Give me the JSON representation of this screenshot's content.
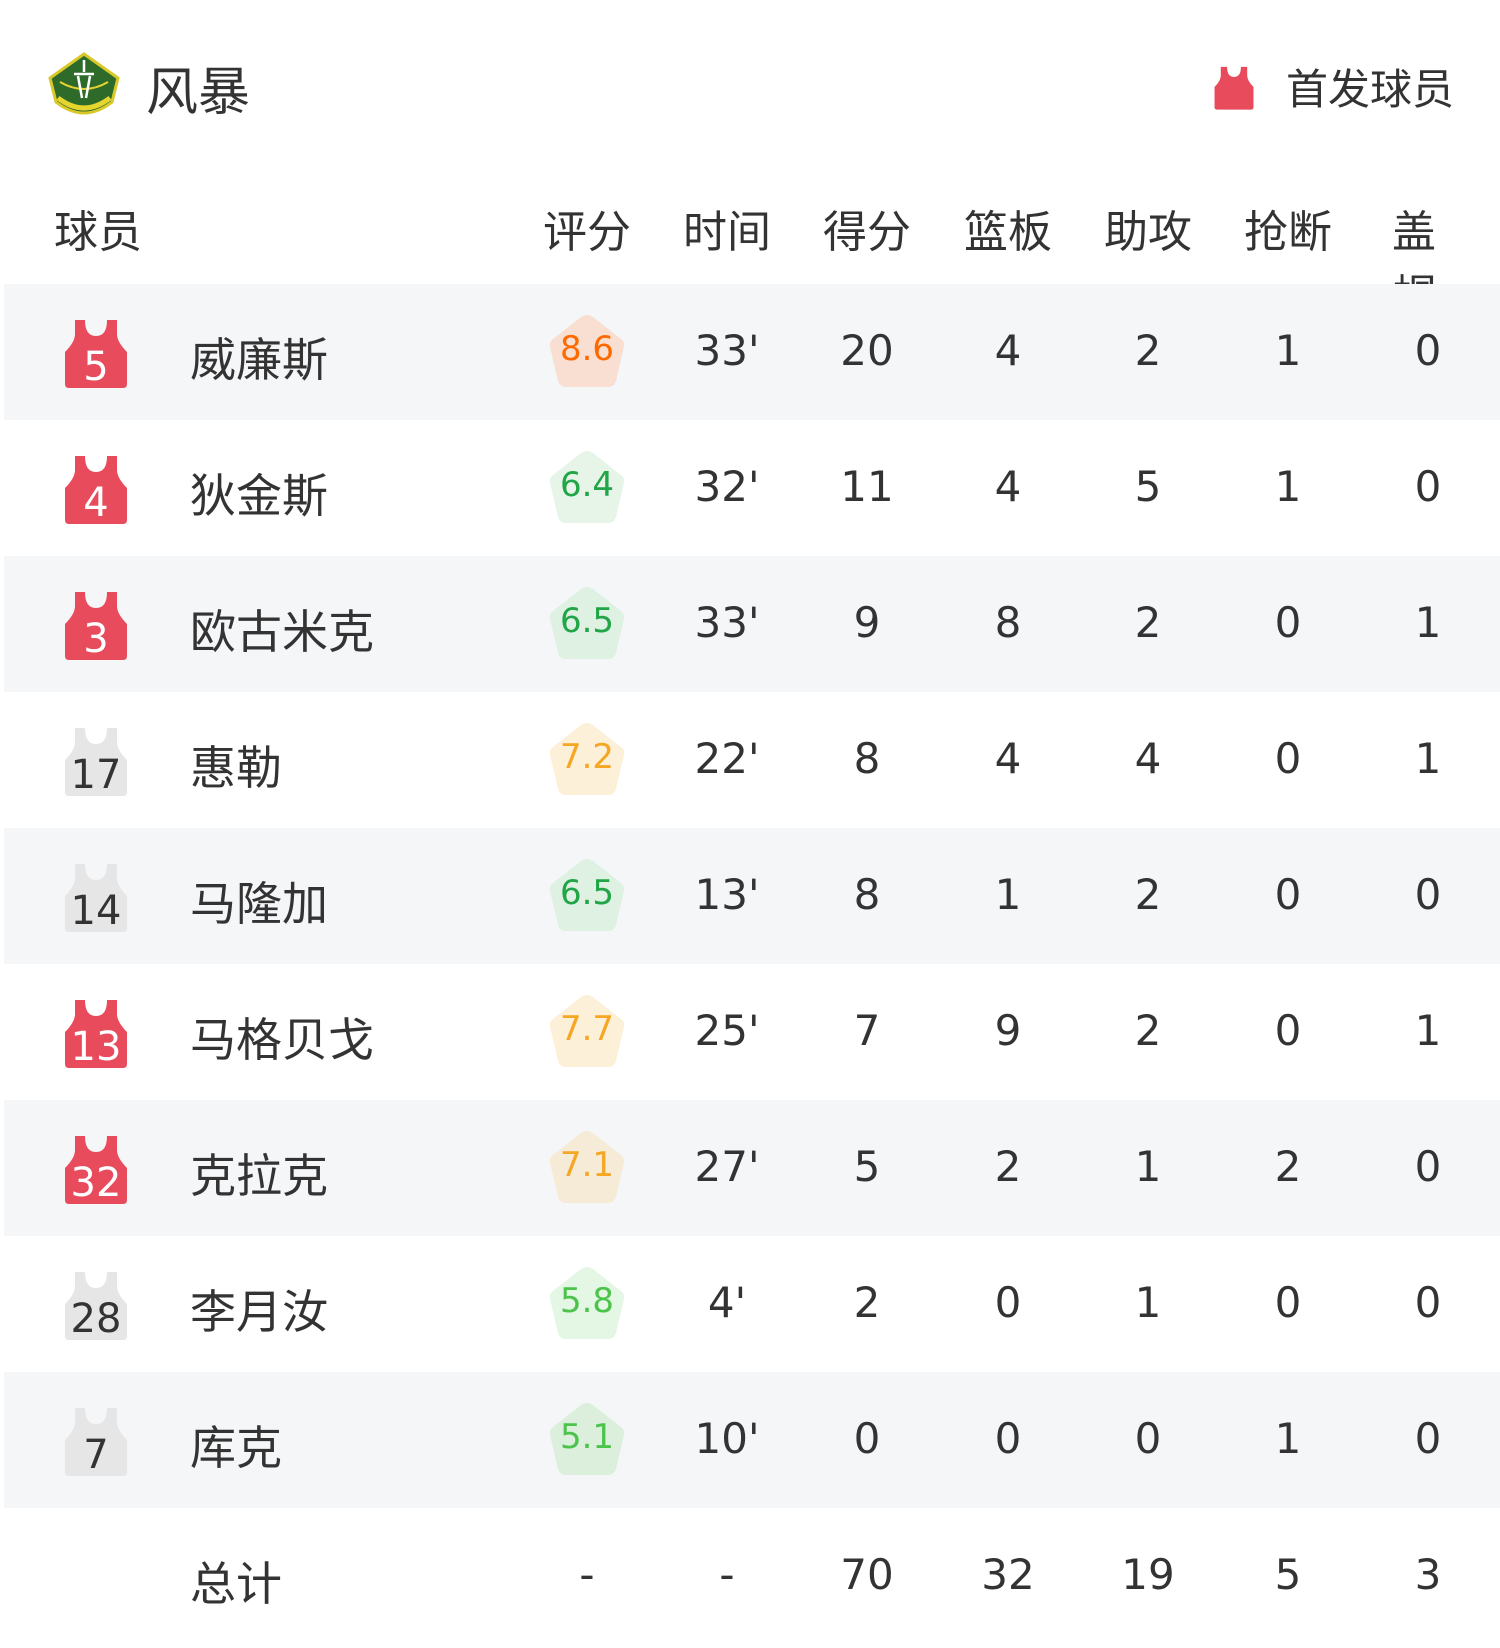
{
  "header": {
    "team_name": "风暴",
    "logo": "seattle-storm-logo",
    "legend_label": "首发球员",
    "legend_icon": "jersey-icon",
    "starter_color": "#e84c5c",
    "bench_color": "#e6e6e6"
  },
  "columns": [
    "球员",
    "评分",
    "时间",
    "得分",
    "篮板",
    "助攻",
    "抢断",
    "盖帽"
  ],
  "players": [
    {
      "number": "5",
      "name": "威廉斯",
      "starter": true,
      "rating": "8.6",
      "rating_color": "#ff6a00",
      "rating_bg": "#f8dfd2",
      "min": "33'",
      "pts": "20",
      "reb": "4",
      "ast": "2",
      "stl": "1",
      "blk": "0"
    },
    {
      "number": "4",
      "name": "狄金斯",
      "starter": true,
      "rating": "6.4",
      "rating_color": "#21a546",
      "rating_bg": "#e6f5e8",
      "min": "32'",
      "pts": "11",
      "reb": "4",
      "ast": "5",
      "stl": "1",
      "blk": "0"
    },
    {
      "number": "3",
      "name": "欧古米克",
      "starter": true,
      "rating": "6.5",
      "rating_color": "#21a546",
      "rating_bg": "#dff1e3",
      "min": "33'",
      "pts": "9",
      "reb": "8",
      "ast": "2",
      "stl": "0",
      "blk": "1"
    },
    {
      "number": "17",
      "name": "惠勒",
      "starter": false,
      "rating": "7.2",
      "rating_color": "#f5a623",
      "rating_bg": "#fdf0d8",
      "min": "22'",
      "pts": "8",
      "reb": "4",
      "ast": "4",
      "stl": "0",
      "blk": "1"
    },
    {
      "number": "14",
      "name": "马隆加",
      "starter": false,
      "rating": "6.5",
      "rating_color": "#21a546",
      "rating_bg": "#dff1e3",
      "min": "13'",
      "pts": "8",
      "reb": "1",
      "ast": "2",
      "stl": "0",
      "blk": "0"
    },
    {
      "number": "13",
      "name": "马格贝戈",
      "starter": true,
      "rating": "7.7",
      "rating_color": "#f5a623",
      "rating_bg": "#fdf0d8",
      "min": "25'",
      "pts": "7",
      "reb": "9",
      "ast": "2",
      "stl": "0",
      "blk": "1"
    },
    {
      "number": "32",
      "name": "克拉克",
      "starter": true,
      "rating": "7.1",
      "rating_color": "#f5a623",
      "rating_bg": "#f6ebd6",
      "min": "27'",
      "pts": "5",
      "reb": "2",
      "ast": "1",
      "stl": "2",
      "blk": "0"
    },
    {
      "number": "28",
      "name": "李月汝",
      "starter": false,
      "rating": "5.8",
      "rating_color": "#4cc44c",
      "rating_bg": "#e4f6e4",
      "min": "4'",
      "pts": "2",
      "reb": "0",
      "ast": "1",
      "stl": "0",
      "blk": "0"
    },
    {
      "number": "7",
      "name": "库克",
      "starter": false,
      "rating": "5.1",
      "rating_color": "#4cc44c",
      "rating_bg": "#dcefdc",
      "min": "10'",
      "pts": "0",
      "reb": "0",
      "ast": "0",
      "stl": "1",
      "blk": "0"
    }
  ],
  "totals": {
    "label": "总计",
    "rating": "-",
    "min": "-",
    "pts": "70",
    "reb": "32",
    "ast": "19",
    "stl": "5",
    "blk": "3"
  }
}
